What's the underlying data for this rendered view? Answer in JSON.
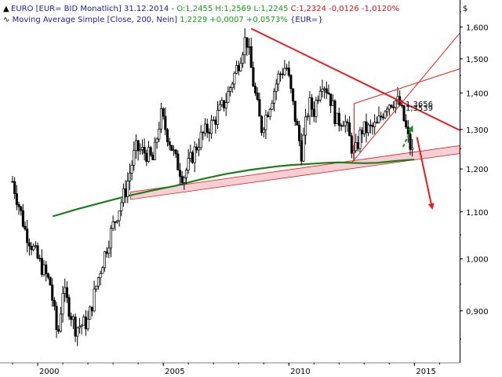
{
  "header": {
    "line1_prefix": "EURO [EUR= BID Monatlich] 31.12.2014 - ",
    "line1_ohl": "O:1,2455 H:1,2569 L:1,2245",
    "line1_close": "C:1,2324 -0,0126 -1,0120%",
    "line2_name": "Moving Average Simple [Close, 200, Nein]",
    "line2_value": "1,2229 +0,0007 +0,0573%",
    "line2_suffix": "{EUR=}"
  },
  "axis": {
    "currency_symbol": "$",
    "y_ticks": [
      "1,600",
      "1,500",
      "1,400",
      "1,300",
      "1,200",
      "1,100",
      "1,000",
      "0,900"
    ],
    "x_ticks": [
      "2000",
      "2005",
      "2010",
      "2015"
    ]
  },
  "annotations": {
    "label_1": "1,3656",
    "label_2": "1,3539"
  },
  "colors": {
    "price": "#000000",
    "moving_average": "#1a7f1a",
    "trendline": "#e81a1a",
    "channel_fill": "#f4cfd6",
    "arrow_down": "#e81a1a",
    "arrow_up": "#1a8f1a",
    "header_blue": "#2020a0",
    "header_green": "#14a014",
    "header_red": "#e01010"
  },
  "chart_data": {
    "type": "line",
    "title": "EURO [EUR= BID Monatlich] 31.12.2014",
    "xlabel": "",
    "ylabel": "$",
    "xlim": [
      1998.5,
      2016.8
    ],
    "ylim": [
      0.81,
      1.69
    ],
    "y_scale": "log",
    "grid": false,
    "series": [
      {
        "name": "EURO",
        "x": [
          1999.0,
          1999.5,
          2000.0,
          2000.5,
          2000.8,
          2001.0,
          2001.5,
          2002.0,
          2002.5,
          2003.0,
          2003.5,
          2003.9,
          2004.3,
          2004.6,
          2004.9,
          2005.5,
          2005.8,
          2006.0,
          2006.5,
          2007.0,
          2007.5,
          2008.0,
          2008.3,
          2008.6,
          2008.9,
          2009.2,
          2009.6,
          2009.9,
          2010.2,
          2010.5,
          2010.8,
          2011.0,
          2011.3,
          2011.6,
          2011.9,
          2012.2,
          2012.6,
          2012.9,
          2013.2,
          2013.5,
          2013.9,
          2014.2,
          2014.4,
          2014.6,
          2014.8,
          2014.99
        ],
        "y": [
          1.17,
          1.06,
          1.0,
          0.95,
          0.85,
          0.94,
          0.87,
          0.88,
          0.98,
          1.07,
          1.15,
          1.25,
          1.24,
          1.22,
          1.34,
          1.22,
          1.18,
          1.21,
          1.28,
          1.32,
          1.38,
          1.49,
          1.57,
          1.42,
          1.3,
          1.36,
          1.45,
          1.48,
          1.35,
          1.24,
          1.37,
          1.35,
          1.44,
          1.4,
          1.32,
          1.33,
          1.23,
          1.3,
          1.3,
          1.31,
          1.37,
          1.38,
          1.37,
          1.32,
          1.26,
          1.23
        ]
      },
      {
        "name": "Moving Average Simple [Close, 200, Nein]",
        "x": [
          2000.6,
          2001.5,
          2002.5,
          2003.5,
          2004.5,
          2005.5,
          2006.5,
          2007.5,
          2008.5,
          2009.5,
          2010.0,
          2010.5,
          2011.0,
          2011.5,
          2012.0,
          2012.5,
          2013.0,
          2013.5,
          2014.0,
          2014.5,
          2014.99
        ],
        "y": [
          1.09,
          1.105,
          1.12,
          1.135,
          1.148,
          1.16,
          1.175,
          1.188,
          1.198,
          1.206,
          1.209,
          1.211,
          1.213,
          1.215,
          1.216,
          1.215,
          1.214,
          1.215,
          1.218,
          1.221,
          1.223
        ]
      }
    ]
  }
}
